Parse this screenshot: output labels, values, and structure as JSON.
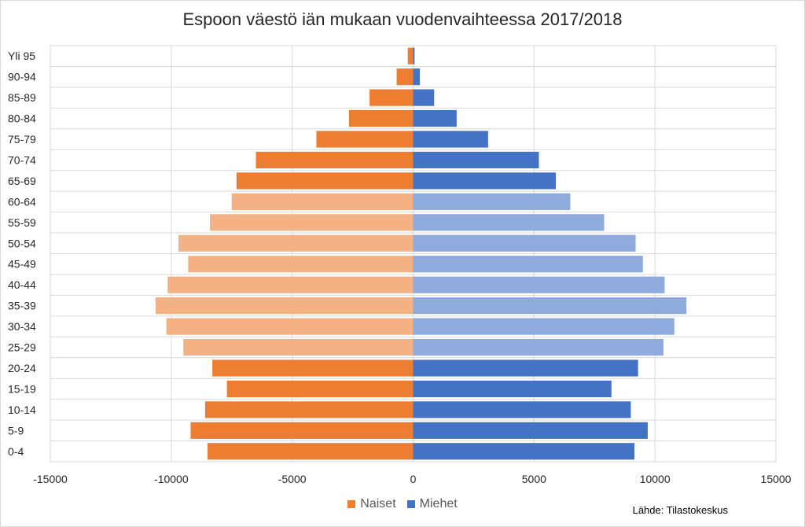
{
  "chart_data": {
    "type": "bar",
    "orientation": "horizontal",
    "title": "Espoon väestö iän mukaan vuodenvaihteessa 2017/2018",
    "categories": [
      "0-4",
      "5-9",
      "10-14",
      "15-19",
      "20-24",
      "25-29",
      "30-34",
      "35-39",
      "40-44",
      "45-49",
      "50-54",
      "55-59",
      "60-64",
      "65-69",
      "70-74",
      "75-79",
      "80-84",
      "85-89",
      "90-94",
      "Yli 95"
    ],
    "series": [
      {
        "name": "Naiset",
        "values": [
          -8500,
          -9200,
          -8600,
          -7700,
          -8300,
          -9500,
          -10200,
          -10650,
          -10150,
          -9300,
          -9700,
          -8400,
          -7500,
          -7300,
          -6500,
          -4000,
          -2650,
          -1800,
          -680,
          -220
        ],
        "colors": [
          "#ed7d31",
          "#ed7d31",
          "#ed7d31",
          "#ed7d31",
          "#ed7d31",
          "#f4b183",
          "#f4b183",
          "#f4b183",
          "#f4b183",
          "#f4b183",
          "#f4b183",
          "#f4b183",
          "#f4b183",
          "#ed7d31",
          "#ed7d31",
          "#ed7d31",
          "#ed7d31",
          "#ed7d31",
          "#ed7d31",
          "#ed7d31"
        ]
      },
      {
        "name": "Miehet",
        "values": [
          9150,
          9700,
          9000,
          8200,
          9300,
          10350,
          10800,
          11300,
          10400,
          9500,
          9200,
          7900,
          6500,
          5900,
          5200,
          3100,
          1800,
          870,
          280,
          60
        ],
        "colors": [
          "#4472c4",
          "#4472c4",
          "#4472c4",
          "#4472c4",
          "#4472c4",
          "#8faadc",
          "#8faadc",
          "#8faadc",
          "#8faadc",
          "#8faadc",
          "#8faadc",
          "#8faadc",
          "#8faadc",
          "#4472c4",
          "#4472c4",
          "#4472c4",
          "#4472c4",
          "#4472c4",
          "#4472c4",
          "#4472c4"
        ]
      }
    ],
    "xlim": [
      -15000,
      15000
    ],
    "xticks": [
      -15000,
      -10000,
      -5000,
      0,
      5000,
      10000,
      15000
    ],
    "xtick_labels": [
      "-15000",
      "-10000",
      "-5000",
      "0",
      "5000",
      "10000",
      "15000"
    ],
    "grid": true,
    "legend_position": "bottom"
  },
  "legend": {
    "items": [
      {
        "label": "Naiset",
        "color": "#ed7d31"
      },
      {
        "label": "Miehet",
        "color": "#4472c4"
      }
    ]
  },
  "source_note": "Lähde: Tilastokeskus"
}
